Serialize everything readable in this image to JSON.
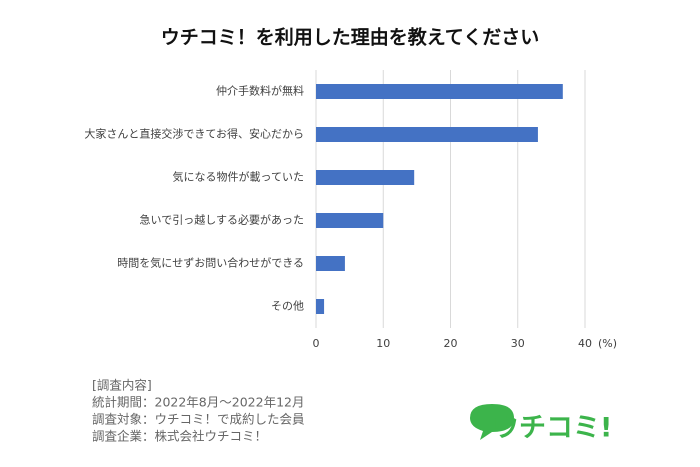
{
  "chart_data": {
    "type": "barh",
    "title": "ウチコミ！を利用した理由を教えてください",
    "categories": [
      "仲介手数料が無料",
      "大家さんと直接交渉できてお得、安心だから",
      "気になる物件が載っていた",
      "急いで引っ越しする必要があった",
      "時間を気にせずお問い合わせができる",
      "その他"
    ],
    "values": [
      36.7,
      33.0,
      14.6,
      10.0,
      4.3,
      1.2
    ],
    "color": "#4472c4",
    "xlim": [
      0,
      40
    ],
    "xticks": [
      0,
      10,
      20,
      30,
      40
    ],
    "x_label": "(%)",
    "grid": true,
    "notes": [
      "[調査内容]",
      "統計期間：2022年8月〜2022年12月",
      "調査対象：ウチコミ！で成約した会員",
      "調査企業：株式会社ウチコミ！"
    ],
    "logo": "ウチコミ!"
  }
}
